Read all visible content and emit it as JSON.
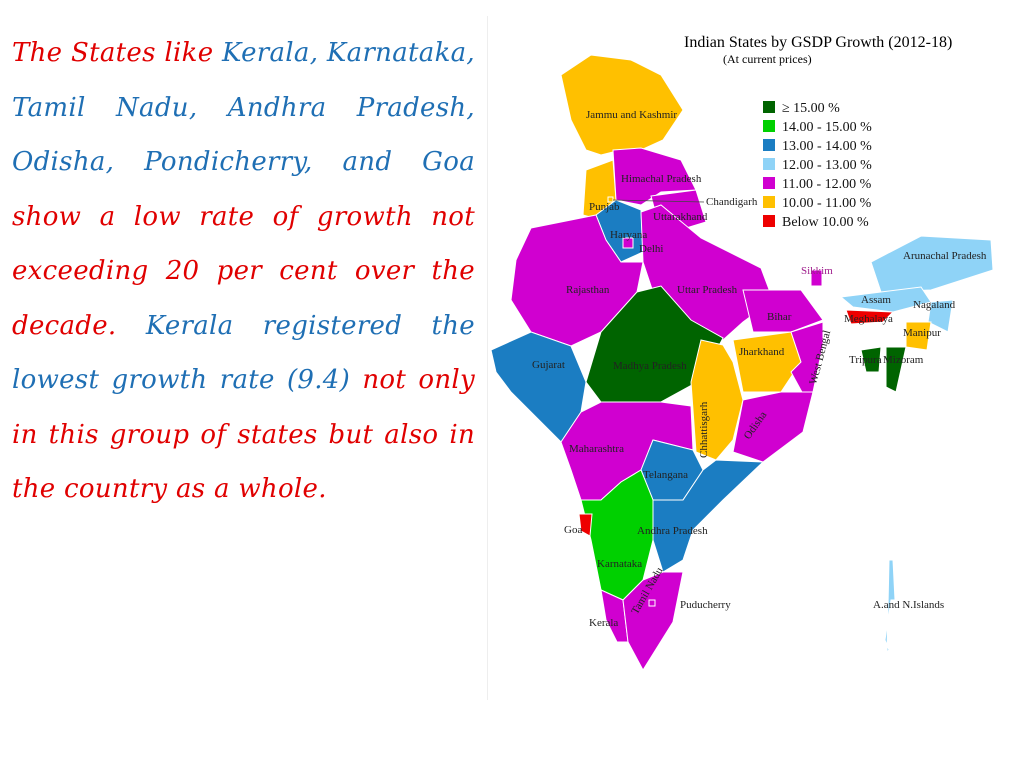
{
  "paragraph": [
    {
      "text": "The States like",
      "color": "#e00000"
    },
    {
      "text": "Kerala, Karnataka, Tamil Nadu, Andhra Pradesh, Odisha, Pondicherry, and Goa",
      "color": "#1f6fb4"
    },
    {
      "text": "show a low rate of growth not exceeding 20 per cent over the decade.",
      "color": "#e00000"
    },
    {
      "text": "Kerala registered the lowest growth rate (9.4)",
      "color": "#1f6fb4"
    },
    {
      "text": "not only in this group of states but also in the country as a whole.",
      "color": "#e00000"
    }
  ],
  "map": {
    "title": "Indian States by GSDP Growth (2012-18)",
    "subtitle": "(At current prices)",
    "legend": [
      {
        "label": "≥ 15.00 %",
        "color": "#006400"
      },
      {
        "label": "14.00 - 15.00 %",
        "color": "#00d000"
      },
      {
        "label": "13.00 - 14.00 %",
        "color": "#1b7dc2"
      },
      {
        "label": "12.00 - 13.00 %",
        "color": "#8fd3f7"
      },
      {
        "label": "11.00 - 12.00 %",
        "color": "#d000d0"
      },
      {
        "label": "10.00 - 11.00 %",
        "color": "#ffc000"
      },
      {
        "label": "Below 10.00 %",
        "color": "#ee0000"
      }
    ],
    "states": [
      {
        "name": "Jammu and Kashmir",
        "class": 5
      },
      {
        "name": "Punjab",
        "class": 5
      },
      {
        "name": "Himachal Pradesh",
        "class": 4
      },
      {
        "name": "Uttarakhand",
        "class": 4
      },
      {
        "name": "Haryana",
        "class": 2
      },
      {
        "name": "Rajasthan",
        "class": 4
      },
      {
        "name": "Uttar Pradesh",
        "class": 4
      },
      {
        "name": "Madhya Pradesh",
        "class": 0
      },
      {
        "name": "Gujarat",
        "class": 2
      },
      {
        "name": "Maharashtra",
        "class": 4
      },
      {
        "name": "Chhattisgarh",
        "class": 5
      },
      {
        "name": "Bihar",
        "class": 4
      },
      {
        "name": "Jharkhand",
        "class": 5
      },
      {
        "name": "West Bengal",
        "class": 4
      },
      {
        "name": "Odisha",
        "class": 4
      },
      {
        "name": "Telangana",
        "class": 2
      },
      {
        "name": "Andhra Pradesh",
        "class": 2
      },
      {
        "name": "Karnataka",
        "class": 1
      },
      {
        "name": "Goa",
        "class": 6
      },
      {
        "name": "Kerala",
        "class": 4
      },
      {
        "name": "Tamil Nadu",
        "class": 4
      },
      {
        "name": "Arunachal Pradesh",
        "class": 3
      },
      {
        "name": "Assam",
        "class": 3
      },
      {
        "name": "Nagaland",
        "class": 3
      },
      {
        "name": "Meghalaya",
        "class": 6
      },
      {
        "name": "Manipur",
        "class": 5
      },
      {
        "name": "Tripura",
        "class": 0
      },
      {
        "name": "Mizoram",
        "class": 0
      },
      {
        "name": "Sikkim",
        "class": 4
      },
      {
        "name": "Delhi",
        "class": 4
      },
      {
        "name": "Chandigarh",
        "class": 5
      },
      {
        "name": "Puducherry",
        "class": 4
      },
      {
        "name": "A.and N.Islands",
        "class": 3
      }
    ]
  }
}
